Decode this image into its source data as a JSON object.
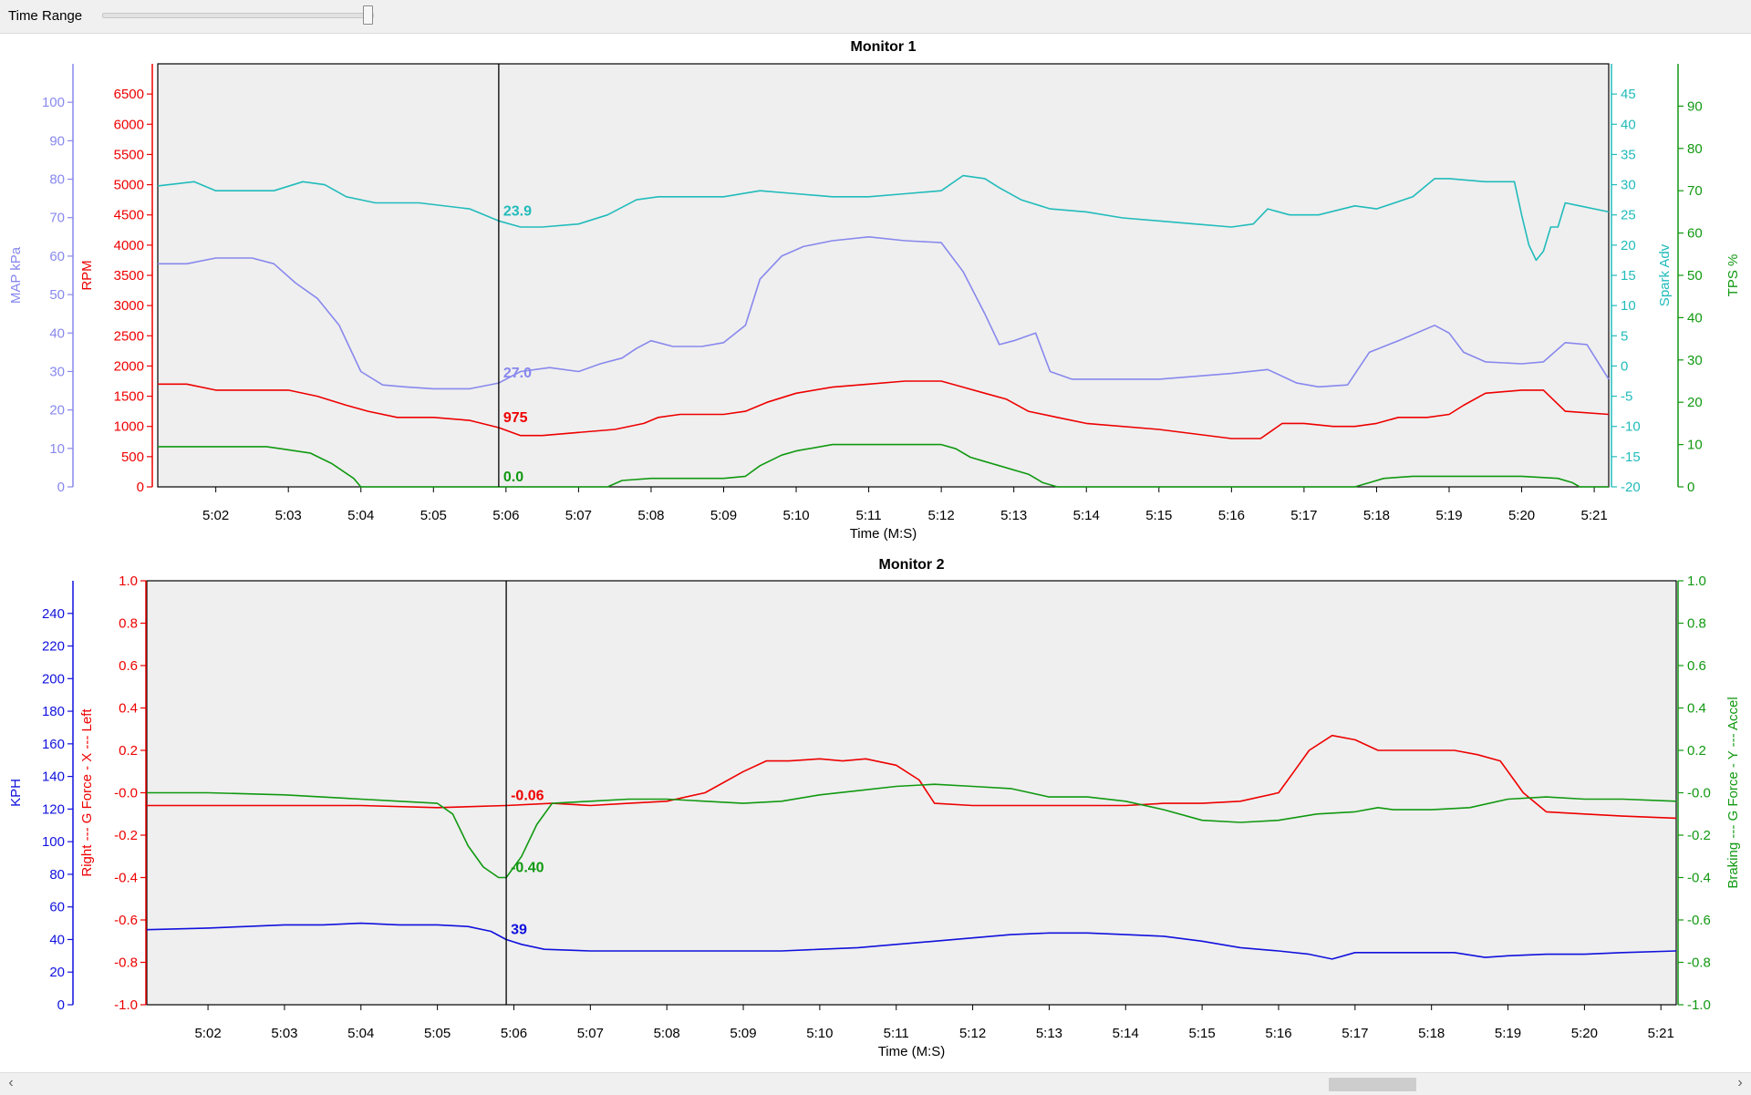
{
  "toolbar": {
    "time_range_label": "Time Range",
    "time_range_value": 1.0
  },
  "cursor": {
    "time": "5:05.9",
    "t_sec": 305.9
  },
  "chart_data": [
    {
      "type": "line",
      "title": "Monitor 1",
      "xlabel": "Time (M:S)",
      "x_ticks": [
        "5:02",
        "5:03",
        "5:04",
        "5:05",
        "5:06",
        "5:07",
        "5:08",
        "5:09",
        "5:10",
        "5:11",
        "5:12",
        "5:13",
        "5:14",
        "5:15",
        "5:16",
        "5:17",
        "5:18",
        "5:19",
        "5:20",
        "5:21"
      ],
      "x_tick_secs": [
        302,
        303,
        304,
        305,
        306,
        307,
        308,
        309,
        310,
        311,
        312,
        313,
        314,
        315,
        316,
        317,
        318,
        319,
        320,
        321
      ],
      "xlim_sec": [
        301.2,
        321.2
      ],
      "grid": false,
      "axes": [
        {
          "id": "map",
          "label": "MAP kPa",
          "color": "#8888ee",
          "side": "left",
          "ylim": [
            0,
            110
          ],
          "ticks": [
            0,
            10,
            20,
            30,
            40,
            50,
            60,
            70,
            80,
            90,
            100
          ]
        },
        {
          "id": "rpm",
          "label": "RPM",
          "color": "#ee0000",
          "side": "left",
          "ylim": [
            0,
            7000
          ],
          "ticks": [
            0,
            500,
            1000,
            1500,
            2000,
            2500,
            3000,
            3500,
            4000,
            4500,
            5000,
            5500,
            6000,
            6500
          ]
        },
        {
          "id": "spark",
          "label": "Spark Adv",
          "color": "#22bbbb",
          "side": "right",
          "ylim": [
            -20,
            50
          ],
          "ticks": [
            -20,
            -15,
            -10,
            -5,
            0,
            5,
            10,
            15,
            20,
            25,
            30,
            35,
            40,
            45
          ]
        },
        {
          "id": "tps",
          "label": "TPS %",
          "color": "#119911",
          "side": "right",
          "ylim": [
            0,
            100
          ],
          "ticks": [
            0,
            10,
            20,
            30,
            40,
            50,
            60,
            70,
            80,
            90
          ]
        }
      ],
      "series": [
        {
          "axis": "spark",
          "color": "#22bbbb",
          "cursor_value": "23.9",
          "x": [
            301.2,
            301.7,
            302.0,
            302.3,
            302.8,
            303.2,
            303.5,
            303.8,
            304.2,
            304.8,
            305.5,
            305.9,
            306.2,
            306.5,
            307.0,
            307.4,
            307.8,
            308.1,
            308.5,
            309.0,
            309.5,
            310.0,
            310.5,
            311.0,
            311.5,
            312.0,
            312.3,
            312.6,
            312.8,
            313.1,
            313.5,
            314.0,
            314.5,
            315.0,
            315.5,
            316.0,
            316.3,
            316.5,
            316.8,
            317.2,
            317.7,
            318.0,
            318.5,
            318.8,
            319.0,
            319.5,
            319.9,
            320.0,
            320.1,
            320.2,
            320.3,
            320.4,
            320.5,
            320.6,
            320.8,
            321.2
          ],
          "y": [
            29.8,
            30.5,
            29.0,
            29.0,
            29.0,
            30.5,
            30.0,
            28.0,
            27.0,
            27.0,
            26.0,
            24.0,
            23.0,
            23.0,
            23.5,
            25.0,
            27.5,
            28.0,
            28.0,
            28.0,
            29.0,
            28.5,
            28.0,
            28.0,
            28.5,
            29.0,
            31.5,
            31.0,
            29.5,
            27.5,
            26.0,
            25.5,
            24.5,
            24.0,
            23.5,
            23.0,
            23.5,
            26.0,
            25.0,
            25.0,
            26.5,
            26.0,
            28.0,
            31.0,
            31.0,
            30.5,
            30.5,
            25.0,
            20.0,
            17.5,
            19.0,
            23.0,
            23.0,
            27.0,
            26.5,
            25.5
          ]
        },
        {
          "axis": "map",
          "color": "#8888ee",
          "cursor_value": "27.0",
          "x": [
            301.2,
            301.6,
            302.0,
            302.5,
            302.8,
            303.1,
            303.4,
            303.7,
            304.0,
            304.3,
            304.6,
            305.0,
            305.5,
            305.9,
            306.2,
            306.6,
            307.0,
            307.3,
            307.6,
            307.8,
            308.0,
            308.3,
            308.7,
            309.0,
            309.3,
            309.5,
            309.8,
            310.1,
            310.5,
            311.0,
            311.5,
            312.0,
            312.3,
            312.6,
            312.8,
            313.0,
            313.3,
            313.5,
            313.8,
            314.0,
            315.0,
            316.0,
            316.5,
            316.9,
            317.2,
            317.6,
            317.9,
            318.3,
            318.8,
            319.0,
            319.2,
            319.5,
            320.0,
            320.3,
            320.6,
            320.9,
            321.2
          ],
          "y": [
            58,
            58,
            59.5,
            59.5,
            58,
            53,
            49,
            42,
            30,
            26.5,
            26,
            25.5,
            25.5,
            27,
            30,
            31,
            30,
            32,
            33.5,
            36,
            38,
            36.5,
            36.5,
            37.5,
            42,
            54,
            60,
            62.5,
            64,
            65,
            64,
            63.5,
            56,
            45,
            37,
            38,
            40,
            30,
            28,
            28,
            28,
            29.5,
            30.5,
            27,
            26,
            26.5,
            35,
            38,
            42,
            40,
            35,
            32.5,
            32,
            32.5,
            37.5,
            37,
            28
          ]
        },
        {
          "axis": "rpm",
          "color": "#ee0000",
          "cursor_value": "975",
          "x": [
            301.2,
            301.6,
            302.0,
            302.5,
            303.0,
            303.4,
            303.8,
            304.1,
            304.5,
            305.0,
            305.5,
            305.9,
            306.2,
            306.5,
            307.0,
            307.5,
            307.9,
            308.1,
            308.4,
            308.7,
            309.0,
            309.3,
            309.6,
            310.0,
            310.5,
            311.0,
            311.5,
            312.0,
            312.3,
            312.6,
            312.9,
            313.2,
            313.6,
            314.0,
            315.0,
            316.0,
            316.4,
            316.7,
            317.0,
            317.4,
            317.7,
            318.0,
            318.3,
            318.7,
            319.0,
            319.2,
            319.5,
            320.0,
            320.3,
            320.6,
            321.2
          ],
          "y": [
            1700,
            1700,
            1600,
            1600,
            1600,
            1500,
            1350,
            1250,
            1150,
            1150,
            1100,
            980,
            850,
            850,
            900,
            950,
            1050,
            1150,
            1200,
            1200,
            1200,
            1250,
            1400,
            1550,
            1650,
            1700,
            1750,
            1750,
            1650,
            1550,
            1450,
            1250,
            1150,
            1050,
            950,
            800,
            800,
            1050,
            1050,
            1000,
            1000,
            1050,
            1150,
            1150,
            1200,
            1350,
            1550,
            1600,
            1600,
            1250,
            1200
          ]
        },
        {
          "axis": "tps",
          "color": "#119911",
          "cursor_value": "0.0",
          "x": [
            301.2,
            301.6,
            302.0,
            302.4,
            302.7,
            302.9,
            303.3,
            303.6,
            303.9,
            304.0,
            305.9,
            306.8,
            307.4,
            307.6,
            308.0,
            308.5,
            309.0,
            309.3,
            309.5,
            309.8,
            310.0,
            310.5,
            311.0,
            311.5,
            312.0,
            312.2,
            312.4,
            312.6,
            312.8,
            313.2,
            313.3,
            313.4,
            313.6,
            317.7,
            317.9,
            318.1,
            318.5,
            319.0,
            319.5,
            320.0,
            320.5,
            320.7,
            320.8,
            321.2
          ],
          "y": [
            9.5,
            9.5,
            9.5,
            9.5,
            9.5,
            9,
            8,
            5.5,
            2,
            0,
            0,
            0,
            0,
            1.5,
            2,
            2,
            2,
            2.5,
            5,
            7.5,
            8.5,
            10,
            10,
            10,
            10,
            9,
            7,
            6,
            5,
            3,
            2,
            1,
            0,
            0,
            1,
            2,
            2.5,
            2.5,
            2.5,
            2.5,
            2,
            1,
            0,
            0
          ]
        }
      ]
    },
    {
      "type": "line",
      "title": "Monitor 2",
      "xlabel": "Time (M:S)",
      "x_ticks": [
        "5:02",
        "5:03",
        "5:04",
        "5:05",
        "5:06",
        "5:07",
        "5:08",
        "5:09",
        "5:10",
        "5:11",
        "5:12",
        "5:13",
        "5:14",
        "5:15",
        "5:16",
        "5:17",
        "5:18",
        "5:19",
        "5:20",
        "5:21"
      ],
      "x_tick_secs": [
        302,
        303,
        304,
        305,
        306,
        307,
        308,
        309,
        310,
        311,
        312,
        313,
        314,
        315,
        316,
        317,
        318,
        319,
        320,
        321
      ],
      "xlim_sec": [
        301.2,
        321.2
      ],
      "grid": false,
      "axes": [
        {
          "id": "kph",
          "label": "KPH",
          "color": "#1111dd",
          "side": "left",
          "ylim": [
            0,
            260
          ],
          "ticks": [
            0,
            20,
            40,
            60,
            80,
            100,
            120,
            140,
            160,
            180,
            200,
            220,
            240
          ]
        },
        {
          "id": "gx",
          "label": "Right  ---  G Force - X  ---  Left",
          "color": "#ee0000",
          "side": "left",
          "ylim": [
            -1,
            1
          ],
          "ticks": [
            "-1.0",
            "-0.8",
            "-0.6",
            "-0.4",
            "-0.2",
            "-0.0",
            "0.2",
            "0.4",
            "0.6",
            "0.8",
            "1.0"
          ],
          "tick_values": [
            -1,
            -0.8,
            -0.6,
            -0.4,
            -0.2,
            0,
            0.2,
            0.4,
            0.6,
            0.8,
            1
          ]
        },
        {
          "id": "gy",
          "label": "Braking  ---  G Force - Y  ---  Accel",
          "color": "#119911",
          "side": "right",
          "ylim": [
            -1,
            1
          ],
          "ticks": [
            "-1.0",
            "-0.8",
            "-0.6",
            "-0.4",
            "-0.2",
            "-0.0",
            "0.2",
            "0.4",
            "0.6",
            "0.8",
            "1.0"
          ],
          "tick_values": [
            -1,
            -0.8,
            -0.6,
            -0.4,
            -0.2,
            0,
            0.2,
            0.4,
            0.6,
            0.8,
            1
          ]
        }
      ],
      "series": [
        {
          "axis": "gx",
          "color": "#ee0000",
          "cursor_value": "-0.06",
          "x": [
            301.2,
            302.0,
            303.0,
            304.0,
            305.0,
            305.9,
            306.5,
            307.0,
            307.5,
            308.0,
            308.5,
            309.0,
            309.3,
            309.6,
            310.0,
            310.3,
            310.6,
            311.0,
            311.3,
            311.5,
            312.0,
            313.0,
            314.0,
            314.5,
            315.0,
            315.5,
            316.0,
            316.2,
            316.4,
            316.7,
            317.0,
            317.3,
            317.6,
            318.0,
            318.3,
            318.6,
            318.9,
            319.2,
            319.5,
            320.0,
            320.5,
            321.2
          ],
          "y": [
            -0.06,
            -0.06,
            -0.06,
            -0.06,
            -0.07,
            -0.06,
            -0.05,
            -0.06,
            -0.05,
            -0.04,
            0.0,
            0.1,
            0.15,
            0.15,
            0.16,
            0.15,
            0.16,
            0.13,
            0.06,
            -0.05,
            -0.06,
            -0.06,
            -0.06,
            -0.05,
            -0.05,
            -0.04,
            0.0,
            0.1,
            0.2,
            0.27,
            0.25,
            0.2,
            0.2,
            0.2,
            0.2,
            0.18,
            0.15,
            0.0,
            -0.09,
            -0.1,
            -0.11,
            -0.12
          ]
        },
        {
          "axis": "gy",
          "color": "#119911",
          "cursor_value": "-0.40",
          "x": [
            301.2,
            302.0,
            303.0,
            304.0,
            304.5,
            305.0,
            305.2,
            305.4,
            305.6,
            305.8,
            305.9,
            306.1,
            306.3,
            306.5,
            307.0,
            307.5,
            308.0,
            308.5,
            309.0,
            309.5,
            310.0,
            310.5,
            311.0,
            311.5,
            312.0,
            312.5,
            313.0,
            313.5,
            314.0,
            314.5,
            315.0,
            315.5,
            316.0,
            316.5,
            317.0,
            317.3,
            317.5,
            318.0,
            318.5,
            319.0,
            319.5,
            320.0,
            320.5,
            321.2
          ],
          "y": [
            0.0,
            0.0,
            -0.01,
            -0.03,
            -0.04,
            -0.05,
            -0.1,
            -0.25,
            -0.35,
            -0.4,
            -0.4,
            -0.3,
            -0.15,
            -0.05,
            -0.04,
            -0.03,
            -0.03,
            -0.04,
            -0.05,
            -0.04,
            -0.01,
            0.01,
            0.03,
            0.04,
            0.03,
            0.02,
            -0.02,
            -0.02,
            -0.04,
            -0.08,
            -0.13,
            -0.14,
            -0.13,
            -0.1,
            -0.09,
            -0.07,
            -0.08,
            -0.08,
            -0.07,
            -0.03,
            -0.02,
            -0.03,
            -0.03,
            -0.04
          ]
        },
        {
          "axis": "kph",
          "color": "#1111dd",
          "cursor_value": "39",
          "x": [
            301.2,
            302.0,
            302.5,
            303.0,
            303.5,
            304.0,
            304.5,
            305.0,
            305.4,
            305.7,
            305.9,
            306.1,
            306.4,
            307.0,
            308.0,
            309.0,
            309.5,
            310.0,
            310.5,
            311.0,
            311.5,
            312.0,
            312.5,
            313.0,
            313.5,
            314.0,
            314.5,
            315.0,
            315.5,
            316.0,
            316.4,
            316.7,
            317.0,
            317.5,
            318.0,
            318.3,
            318.7,
            319.0,
            319.5,
            320.0,
            320.5,
            321.2
          ],
          "y": [
            46,
            47,
            48,
            49,
            49,
            50,
            49,
            49,
            48,
            45,
            40,
            37,
            34,
            33,
            33,
            33,
            33,
            34,
            35,
            37,
            39,
            41,
            43,
            44,
            44,
            43,
            42,
            39,
            35,
            33,
            31,
            28,
            32,
            32,
            32,
            32,
            29,
            30,
            31,
            31,
            32,
            33
          ]
        }
      ]
    }
  ]
}
